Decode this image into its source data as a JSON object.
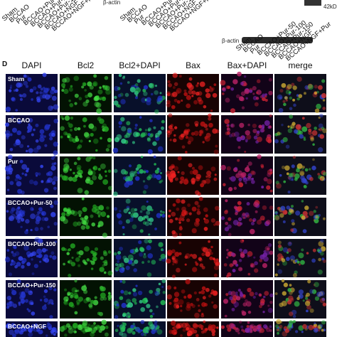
{
  "blot": {
    "lanes": [
      "Sham",
      "BCCAO",
      "Pur",
      "BCCAO+Pur-50",
      "BCCAO+Pur-100",
      "BCCAO+Pur-150",
      "BCCAO+NGF",
      "BCCAO+NGF+Pur"
    ],
    "loading_control": "β-actin",
    "size": "42kD"
  },
  "panel": {
    "label": "D",
    "columns": [
      "DAPI",
      "Bcl2",
      "Bcl2+DAPI",
      "Bax",
      "Bax+DAPI",
      "merge"
    ],
    "rows": [
      "Sham",
      "BCCAO",
      "Pur",
      "BCCAO+Pur-50",
      "BCCAO+Pur-100",
      "BCCAO+Pur-150",
      "BCCAO+NGF"
    ]
  }
}
